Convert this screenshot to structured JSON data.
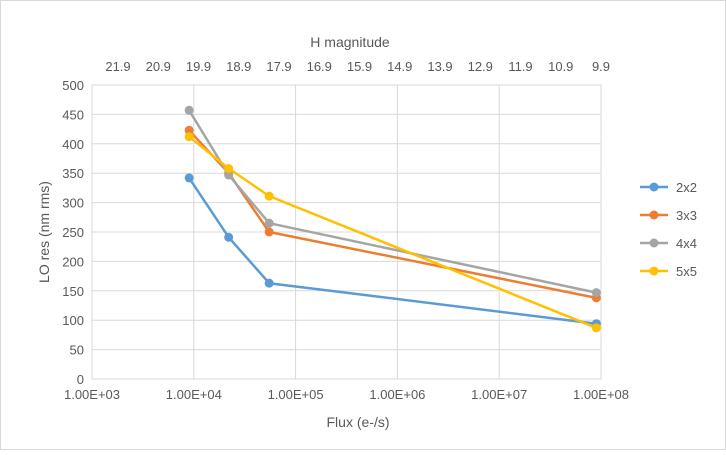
{
  "chart_data": {
    "type": "line",
    "xlabel": "Flux (e-/s)",
    "ylabel": "LO res (nm rms)",
    "top_axis_label": "H magnitude",
    "x_scale": "log",
    "xlim": [
      1000,
      100000000
    ],
    "ylim": [
      0,
      500
    ],
    "y_ticks": [
      0,
      50,
      100,
      150,
      200,
      250,
      300,
      350,
      400,
      450,
      500
    ],
    "x_ticks": [
      {
        "value": 1000,
        "label": "1.00E+03"
      },
      {
        "value": 10000,
        "label": "1.00E+04"
      },
      {
        "value": 100000,
        "label": "1.00E+05"
      },
      {
        "value": 1000000,
        "label": "1.00E+06"
      },
      {
        "value": 10000000,
        "label": "1.00E+07"
      },
      {
        "value": 100000000,
        "label": "1.00E+08"
      }
    ],
    "top_ticks": [
      "21.9",
      "20.9",
      "19.9",
      "18.9",
      "17.9",
      "16.9",
      "15.9",
      "14.9",
      "13.9",
      "12.9",
      "11.9",
      "10.9",
      "9.9"
    ],
    "grid": true,
    "legend_position": "right",
    "x": [
      9000,
      22000,
      55000,
      90000000
    ],
    "series": [
      {
        "name": "2x2",
        "color": "#5B9BD5",
        "values": [
          342,
          241,
          163,
          94
        ]
      },
      {
        "name": "3x3",
        "color": "#ED7D31",
        "values": [
          423,
          350,
          250,
          138
        ]
      },
      {
        "name": "4x4",
        "color": "#A5A5A5",
        "values": [
          457,
          347,
          265,
          147
        ]
      },
      {
        "name": "5x5",
        "color": "#FFC000",
        "values": [
          412,
          358,
          311,
          87
        ]
      }
    ]
  }
}
